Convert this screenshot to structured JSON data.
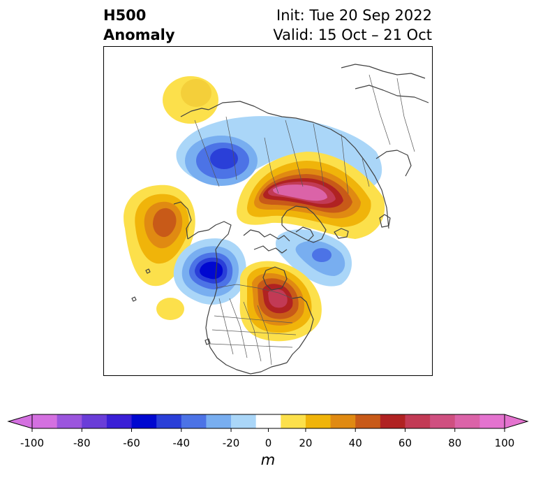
{
  "title": {
    "variable": "H500",
    "field": "Anomaly",
    "init": "Init: Tue 20 Sep 2022",
    "valid": "Valid: 15 Oct – 21 Oct"
  },
  "map": {
    "projection": "north-polar stereographic",
    "region": "North America / Arctic",
    "features": [
      "coastlines",
      "country borders",
      "state/province borders"
    ],
    "anomaly_centers": [
      {
        "name": "negative-center-canada-arctic",
        "sign": "negative",
        "approx_value": -40
      },
      {
        "name": "positive-center-arctic-ocean",
        "sign": "positive",
        "approx_value": 90
      },
      {
        "name": "positive-center-north-pacific",
        "sign": "positive",
        "approx_value": 50
      },
      {
        "name": "negative-center-west-coast",
        "sign": "negative",
        "approx_value": -60
      },
      {
        "name": "positive-center-great-lakes",
        "sign": "positive",
        "approx_value": 70
      },
      {
        "name": "negative-center-atlantic",
        "sign": "negative",
        "approx_value": -30
      },
      {
        "name": "positive-center-siberia",
        "sign": "positive",
        "approx_value": 20
      }
    ]
  },
  "colorbar": {
    "unit": "m",
    "ticks": [
      "-100",
      "-80",
      "-60",
      "-40",
      "-20",
      "0",
      "20",
      "40",
      "60",
      "80",
      "100"
    ],
    "levels": [
      -100,
      -90,
      -80,
      -70,
      -60,
      -50,
      -40,
      -30,
      -20,
      -10,
      10,
      20,
      30,
      40,
      50,
      60,
      70,
      80,
      90,
      100
    ],
    "colors": [
      "#d470e0",
      "#9b55dd",
      "#6a3dd8",
      "#3a1fd6",
      "#0008d0",
      "#2a3fd8",
      "#4c73e6",
      "#78aef0",
      "#aad6f8",
      "#ffffff",
      "#fce04b",
      "#f0b40a",
      "#e08a12",
      "#c85a18",
      "#b02222",
      "#c23a55",
      "#cf4f80",
      "#db63a8",
      "#e473cf"
    ],
    "extend": "both"
  }
}
